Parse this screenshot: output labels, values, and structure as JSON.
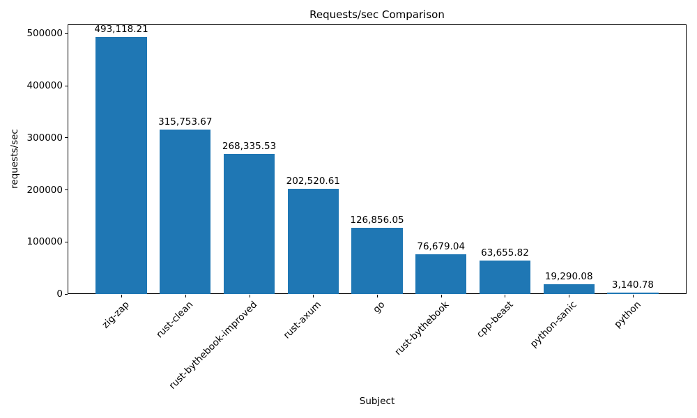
{
  "chart_data": {
    "type": "bar",
    "title": "Requests/sec Comparison",
    "xlabel": "Subject",
    "ylabel": "requests/sec",
    "categories": [
      "zig-zap",
      "rust-clean",
      "rust-bythebook-improved",
      "rust-axum",
      "go",
      "rust-bythebook",
      "cpp-beast",
      "python-sanic",
      "python"
    ],
    "values": [
      493118.21,
      315753.67,
      268335.53,
      202520.61,
      126856.05,
      76679.04,
      63655.82,
      19290.08,
      3140.78
    ],
    "value_labels": [
      "493,118.21",
      "315,753.67",
      "268,335.53",
      "202,520.61",
      "126,856.05",
      "76,679.04",
      "63,655.82",
      "19,290.08",
      "3,140.78"
    ],
    "yticks": [
      0,
      100000,
      200000,
      300000,
      400000,
      500000
    ],
    "ytick_labels": [
      "0",
      "100000",
      "200000",
      "300000",
      "400000",
      "500000"
    ],
    "ylim": [
      0,
      517774
    ],
    "xtick_rotation_deg": 45,
    "bar_color": "#1f77b4",
    "grid": false,
    "legend_position": "none",
    "background_color": "#ffffff",
    "text_color": "#000000"
  }
}
